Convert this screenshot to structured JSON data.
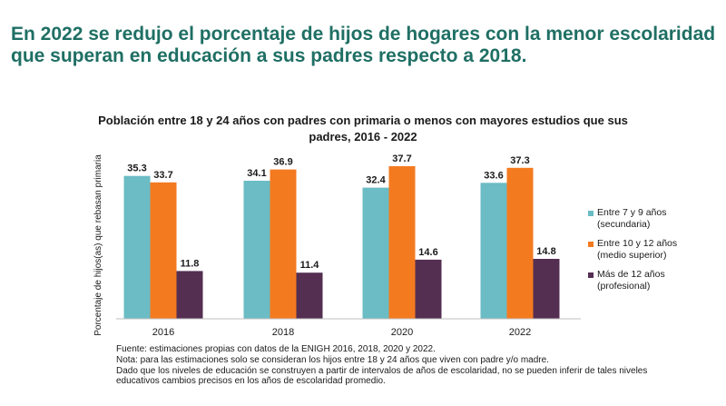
{
  "headline": {
    "line1": "En 2022 se redujo el porcentaje de hijos de hogares con la menor escolaridad",
    "line2": "que superan en educación a sus padres respecto a 2018."
  },
  "chart_data": {
    "type": "bar",
    "title_line1": "Población entre 18 y 24 años con padres con primaria o menos con mayores estudios que sus",
    "title_line2": "padres, 2016 - 2022",
    "ylabel": "Porcentaje de hijos(as) que rebasan primaria",
    "xlabel": "",
    "ylim": [
      0,
      40
    ],
    "categories": [
      "2016",
      "2018",
      "2020",
      "2022"
    ],
    "series": [
      {
        "name": "Entre 7 y 9 años",
        "name_sub": "(secundaria)",
        "color": "#6bbcc4",
        "values": [
          35.3,
          34.1,
          32.4,
          33.6
        ]
      },
      {
        "name": "Entre 10 y 12 años",
        "name_sub": "(medio superior)",
        "color": "#f47a20",
        "values": [
          33.7,
          36.9,
          37.7,
          37.3
        ]
      },
      {
        "name": "Más de 12 años",
        "name_sub": "(profesional)",
        "color": "#542f52",
        "values": [
          11.8,
          11.4,
          14.6,
          14.8
        ]
      }
    ],
    "legend": "right"
  },
  "notes": {
    "source": "Fuente: estimaciones propias con datos de la ENIGH 2016, 2018, 2020 y 2022.",
    "note1": "Nota: para las estimaciones solo se consideran los hijos entre 18 y 24 años que viven con padre y/o madre.",
    "note2": "Dado que los niveles de educación se construyen a partir de intervalos de años de escolaridad, no se pueden inferir de tales niveles",
    "note3": "educativos cambios precisos en los años de escolaridad promedio."
  }
}
